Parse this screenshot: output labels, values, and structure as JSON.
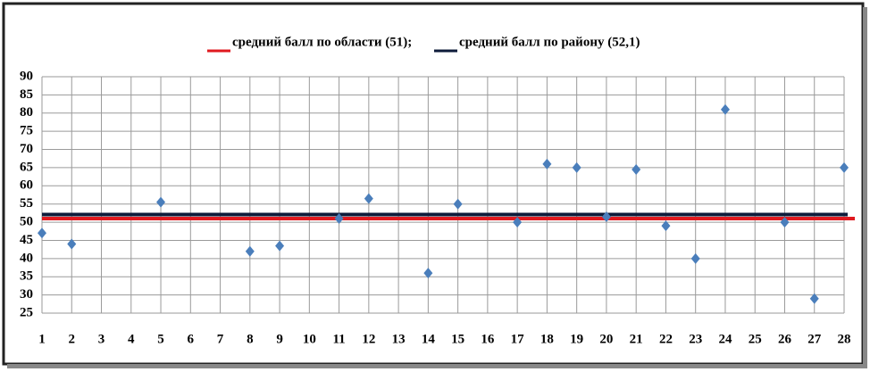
{
  "chart_data": {
    "type": "scatter",
    "x": [
      1,
      2,
      3,
      4,
      5,
      6,
      7,
      8,
      9,
      10,
      11,
      12,
      13,
      14,
      15,
      16,
      17,
      18,
      19,
      20,
      21,
      22,
      23,
      24,
      25,
      26,
      27,
      28
    ],
    "xlim": [
      1,
      28
    ],
    "xticks": [
      1,
      2,
      3,
      4,
      5,
      6,
      7,
      8,
      9,
      10,
      11,
      12,
      13,
      14,
      15,
      16,
      17,
      18,
      19,
      20,
      21,
      22,
      23,
      24,
      25,
      26,
      27,
      28
    ],
    "series": [
      {
        "color": "#4a7ebb",
        "values": [
          47,
          44,
          null,
          null,
          55.5,
          null,
          null,
          42,
          43.5,
          null,
          51,
          56.5,
          null,
          36,
          55,
          null,
          50,
          66,
          65,
          51.5,
          64.5,
          49,
          40,
          81,
          null,
          50,
          29,
          65
        ]
      }
    ],
    "hlines": [
      {
        "name": "средний балл по области (51);",
        "color": "#e0191f",
        "value": 51
      },
      {
        "name": "средний балл по району (52,1)",
        "color": "#0d1b3a",
        "value": 52.1
      }
    ],
    "ylim": [
      25,
      90
    ],
    "yticks": [
      25,
      30,
      35,
      40,
      45,
      50,
      55,
      60,
      65,
      70,
      75,
      80,
      85,
      90
    ],
    "grid": true
  }
}
